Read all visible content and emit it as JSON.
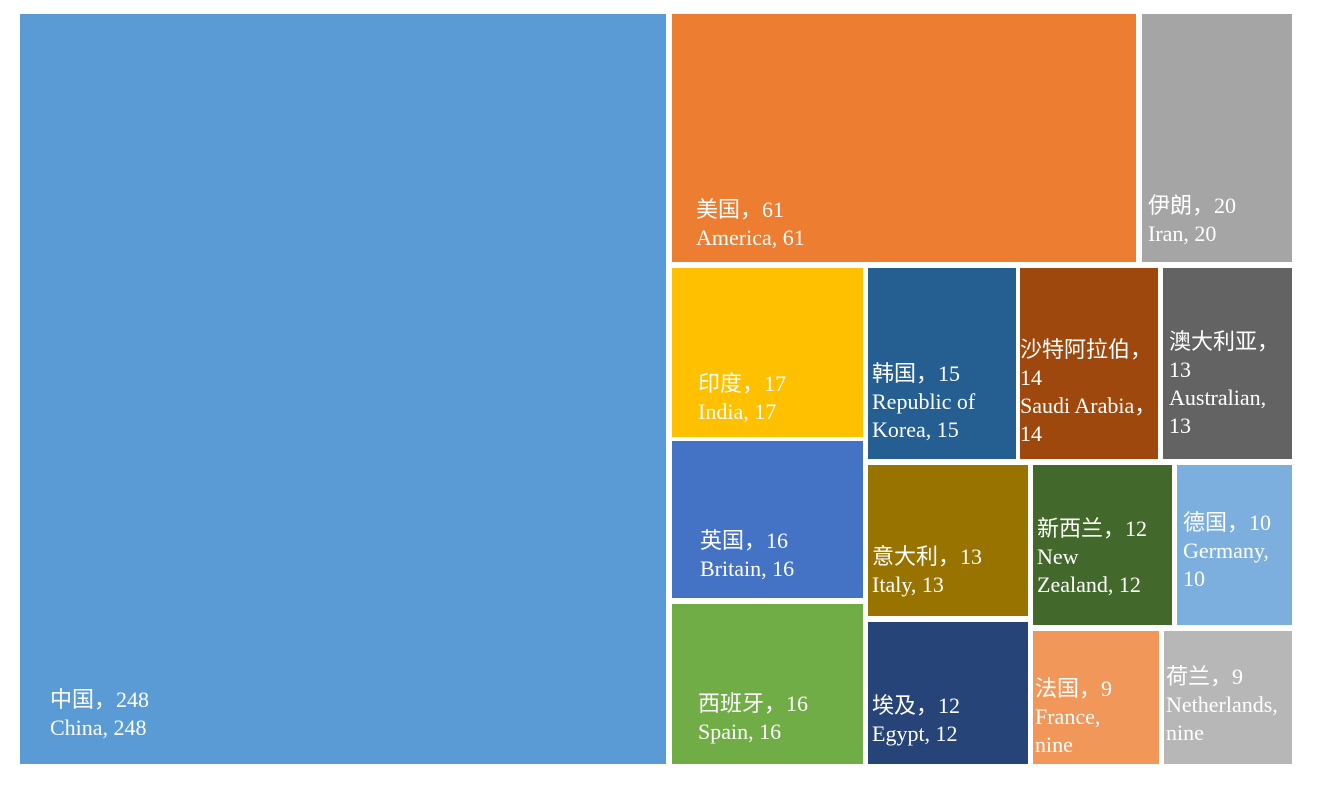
{
  "chart_data": {
    "type": "treemap",
    "items": [
      {
        "label": "中国，248\nChina, 248",
        "value": 248,
        "color": "#5b9bd5"
      },
      {
        "label": "美国，61\nAmerica, 61",
        "value": 61,
        "color": "#ed7d31"
      },
      {
        "label": "伊朗，20\nIran, 20",
        "value": 20,
        "color": "#a5a5a5"
      },
      {
        "label": "印度，17\nIndia, 17",
        "value": 17,
        "color": "#ffc000"
      },
      {
        "label": "英国，16\nBritain, 16",
        "value": 16,
        "color": "#4472c4"
      },
      {
        "label": "西班牙，16\nSpain, 16",
        "value": 16,
        "color": "#70ad47"
      },
      {
        "label": "韩国，15\nRepublic of\nKorea, 15",
        "value": 15,
        "color": "#255e91"
      },
      {
        "label": "意大利，13\nItaly, 13",
        "value": 13,
        "color": "#997300"
      },
      {
        "label": "埃及，12\nEgypt, 12",
        "value": 12,
        "color": "#264478"
      },
      {
        "label": "沙特阿拉伯，\n14\nSaudi Arabia，\n14",
        "value": 14,
        "color": "#9e480e"
      },
      {
        "label": "澳大利亚，\n13\nAustralian,\n13",
        "value": 13,
        "color": "#636363"
      },
      {
        "label": "新西兰，12\nNew\nZealand, 12",
        "value": 12,
        "color": "#43682b"
      },
      {
        "label": "德国，10\nGermany,\n10",
        "value": 10,
        "color": "#7cafdd"
      },
      {
        "label": "法国，9\nFrance,\nnine",
        "value": 9,
        "color": "#f1975a"
      },
      {
        "label": "荷兰，9\nNetherlands,\nnine",
        "value": 9,
        "color": "#b7b7b7"
      }
    ]
  }
}
